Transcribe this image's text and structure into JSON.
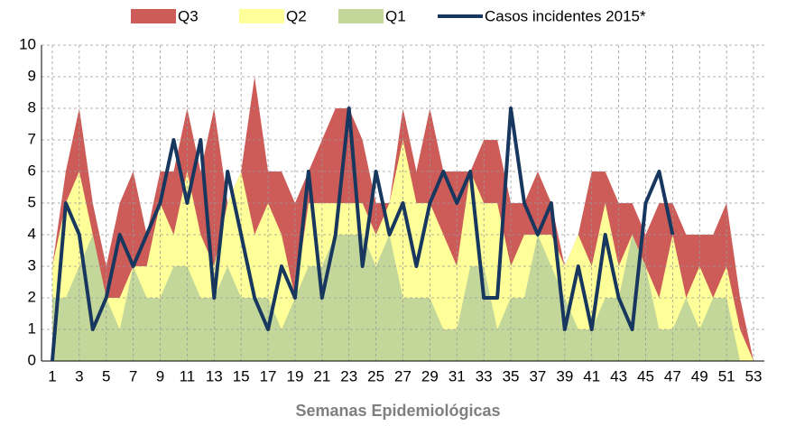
{
  "chart_data": {
    "type": "area-line",
    "x_label": "Semanas Epidemiológicas",
    "x": [
      1,
      2,
      3,
      4,
      5,
      6,
      7,
      8,
      9,
      10,
      11,
      12,
      13,
      14,
      15,
      16,
      17,
      18,
      19,
      20,
      21,
      22,
      23,
      24,
      25,
      26,
      27,
      28,
      29,
      30,
      31,
      32,
      33,
      34,
      35,
      36,
      37,
      38,
      39,
      40,
      41,
      42,
      43,
      44,
      45,
      46,
      47,
      48,
      49,
      50,
      51,
      52,
      53
    ],
    "series": [
      {
        "name": "Q3",
        "kind": "area",
        "color": "#cd5b57",
        "values": [
          3,
          6,
          8,
          5,
          3,
          5,
          6,
          4,
          6,
          6,
          8,
          6,
          8,
          5,
          6,
          9,
          6,
          6,
          5,
          6,
          7,
          8,
          8,
          7,
          5,
          5,
          8,
          6,
          8,
          6,
          6,
          6,
          7,
          7,
          5,
          5,
          6,
          5,
          3,
          4,
          6,
          6,
          5,
          5,
          4,
          5,
          5,
          4,
          4,
          4,
          5,
          2,
          0
        ]
      },
      {
        "name": "Q2",
        "kind": "area",
        "color": "#ffff99",
        "values": [
          3,
          5,
          6,
          4,
          2,
          2,
          3,
          3,
          5,
          4,
          6,
          4,
          3,
          5,
          6,
          4,
          5,
          4,
          2,
          5,
          5,
          5,
          5,
          5,
          4,
          5,
          7,
          5,
          5,
          4,
          3,
          6,
          5,
          5,
          3,
          4,
          4,
          4,
          3,
          4,
          3,
          5,
          3,
          4,
          3,
          2,
          4,
          2,
          3,
          2,
          3,
          1,
          0
        ]
      },
      {
        "name": "Q1",
        "kind": "area",
        "color": "#c4d79b",
        "values": [
          2,
          2,
          3,
          4,
          2,
          1,
          3,
          2,
          2,
          3,
          3,
          2,
          2,
          3,
          2,
          2,
          2,
          1,
          2,
          3,
          3,
          4,
          4,
          4,
          3,
          4,
          2,
          2,
          2,
          1,
          1,
          3,
          3,
          1,
          2,
          2,
          4,
          3,
          2,
          1,
          1,
          2,
          2,
          4,
          3,
          1,
          1,
          2,
          1,
          2,
          2,
          0,
          0
        ]
      },
      {
        "name": "Casos incidentes 2015*",
        "kind": "line",
        "color": "#17375e",
        "values": [
          0,
          5,
          4,
          1,
          2,
          4,
          3,
          4,
          5,
          7,
          5,
          7,
          2,
          6,
          4,
          2,
          1,
          3,
          2,
          6,
          2,
          4,
          8,
          3,
          6,
          4,
          5,
          3,
          5,
          6,
          5,
          6,
          2,
          2,
          8,
          5,
          4,
          5,
          1,
          3,
          1,
          4,
          2,
          1,
          5,
          6,
          4,
          null,
          null,
          null,
          null,
          null,
          null
        ]
      }
    ],
    "xlim": [
      0.2,
      53.8
    ],
    "xticks": [
      1,
      3,
      5,
      7,
      9,
      11,
      13,
      15,
      17,
      19,
      21,
      23,
      25,
      27,
      29,
      31,
      33,
      35,
      37,
      39,
      41,
      43,
      45,
      47,
      49,
      51,
      53
    ],
    "ylim": [
      0,
      10
    ],
    "yticks": [
      0,
      1,
      2,
      3,
      4,
      5,
      6,
      7,
      8,
      9,
      10
    ],
    "grid": true,
    "legend": "top"
  }
}
